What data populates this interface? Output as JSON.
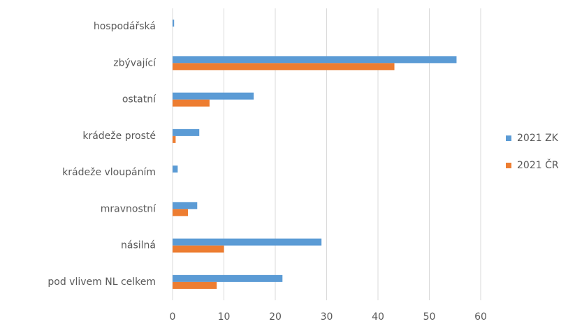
{
  "chart_data": {
    "type": "hbar",
    "categories": [
      "hospodářská",
      "zbývající",
      "ostatní",
      "krádeže prosté",
      "krádeže vloupáním",
      "mravnostní",
      "násilná",
      "pod vlivem NL celkem"
    ],
    "series": [
      {
        "name": "2021 ZK",
        "color": "#5b9bd5",
        "values": [
          0.3,
          55.3,
          15.8,
          5.2,
          1,
          4.8,
          29,
          21.4
        ]
      },
      {
        "name": "2021 ČR",
        "color": "#ed7d31",
        "values": [
          0,
          43.2,
          7.2,
          0.6,
          0,
          3,
          10,
          8.6
        ]
      }
    ],
    "xlim": [
      0,
      60
    ],
    "xticks": [
      0,
      10,
      20,
      30,
      40,
      50,
      60
    ],
    "grid": true,
    "legend": "right"
  }
}
